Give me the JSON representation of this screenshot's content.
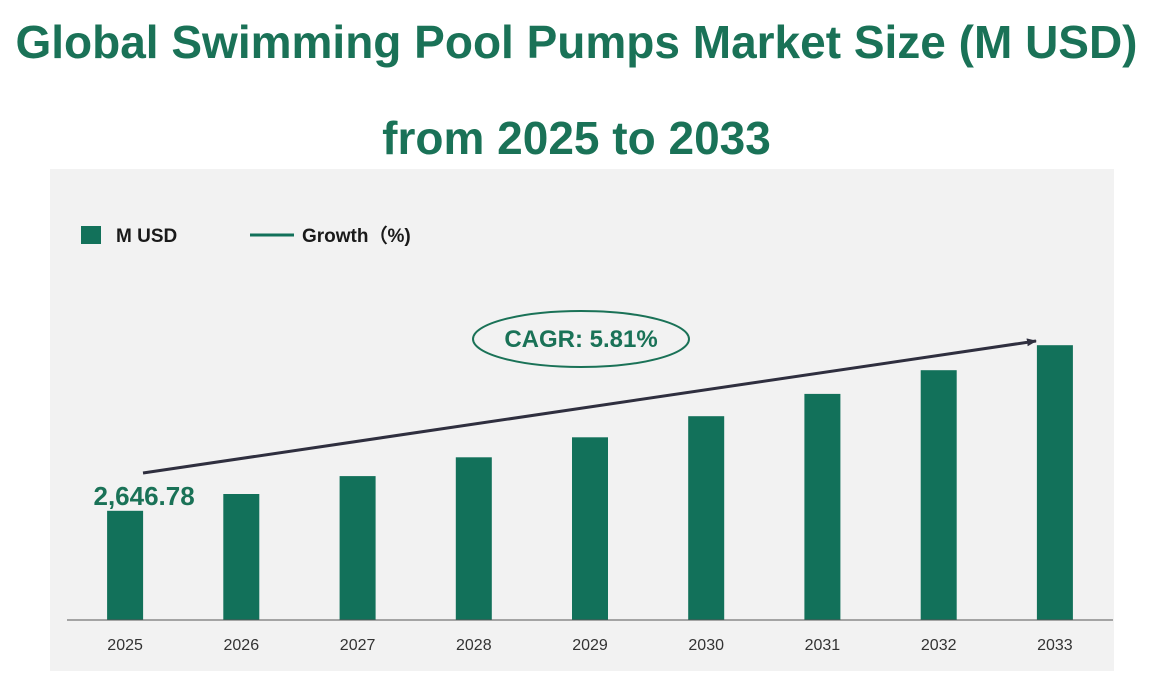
{
  "title": {
    "line1": "Global Swimming Pool Pumps Market Size (M USD)",
    "line2": "from 2025 to 2033"
  },
  "colors": {
    "bar": "#12715a",
    "title": "#1a7257",
    "panel": "#f2f2f2",
    "arrow": "#2f2f3f"
  },
  "legend": {
    "bar_label": "M USD",
    "line_label": "Growth（%)",
    "placement": "top-left"
  },
  "annotation": {
    "cagr_label": "CAGR: 5.81%"
  },
  "chart_data": {
    "type": "bar",
    "categories": [
      "2025",
      "2026",
      "2027",
      "2028",
      "2029",
      "2030",
      "2031",
      "2032",
      "2033"
    ],
    "series": [
      {
        "name": "M USD",
        "values": [
          2646.78,
          2800.6,
          2963.3,
          3135.5,
          3317.7,
          3510.5,
          3714.5,
          3930.3,
          4158.7
        ]
      }
    ],
    "data_labels": [
      {
        "category": "2025",
        "text": "2,646.78"
      }
    ],
    "ylim": [
      1650,
      4900
    ],
    "grid": false,
    "xlabel": "",
    "ylabel": ""
  }
}
